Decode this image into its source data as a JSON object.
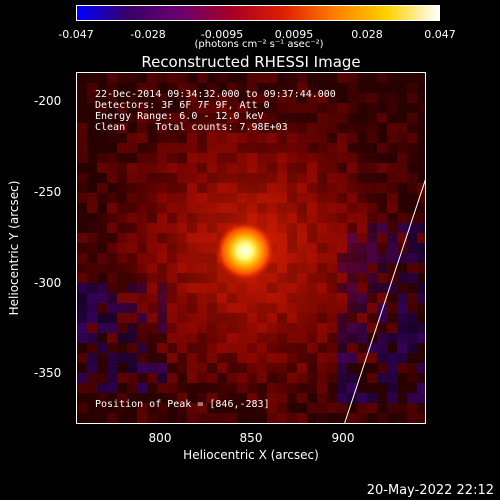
{
  "colorbar": {
    "gradient": [
      "#0000ff",
      "#3a0066",
      "#6a0070",
      "#a60024",
      "#e01f00",
      "#ff7f00",
      "#ffd200",
      "#ffffff"
    ],
    "ticks": [
      "-0.047",
      "-0.028",
      "-0.0095",
      "0.0095",
      "0.028",
      "0.047"
    ],
    "unit_label": "(photons cm⁻² s⁻¹ asec⁻²)"
  },
  "title": "Reconstructed RHESSI Image",
  "annotation": {
    "line1": "22-Dec-2014 09:34:32.000 to 09:37:44.000",
    "line2": "Detectors: 3F 6F 7F 9F, Att 0",
    "line3": "Energy Range: 6.0 - 12.0 keV",
    "line4": "Clean     Total counts: 7.98E+03",
    "peak": "Position of Peak = [846,-283]"
  },
  "axes": {
    "xlabel": "Heliocentric X (arcsec)",
    "ylabel": "Heliocentric Y (arcsec)",
    "xticks": [
      "800",
      "850",
      "900"
    ],
    "yticks": [
      "-200",
      "-250",
      "-300",
      "-350"
    ]
  },
  "datestamp": "20-May-2022 22:12"
}
